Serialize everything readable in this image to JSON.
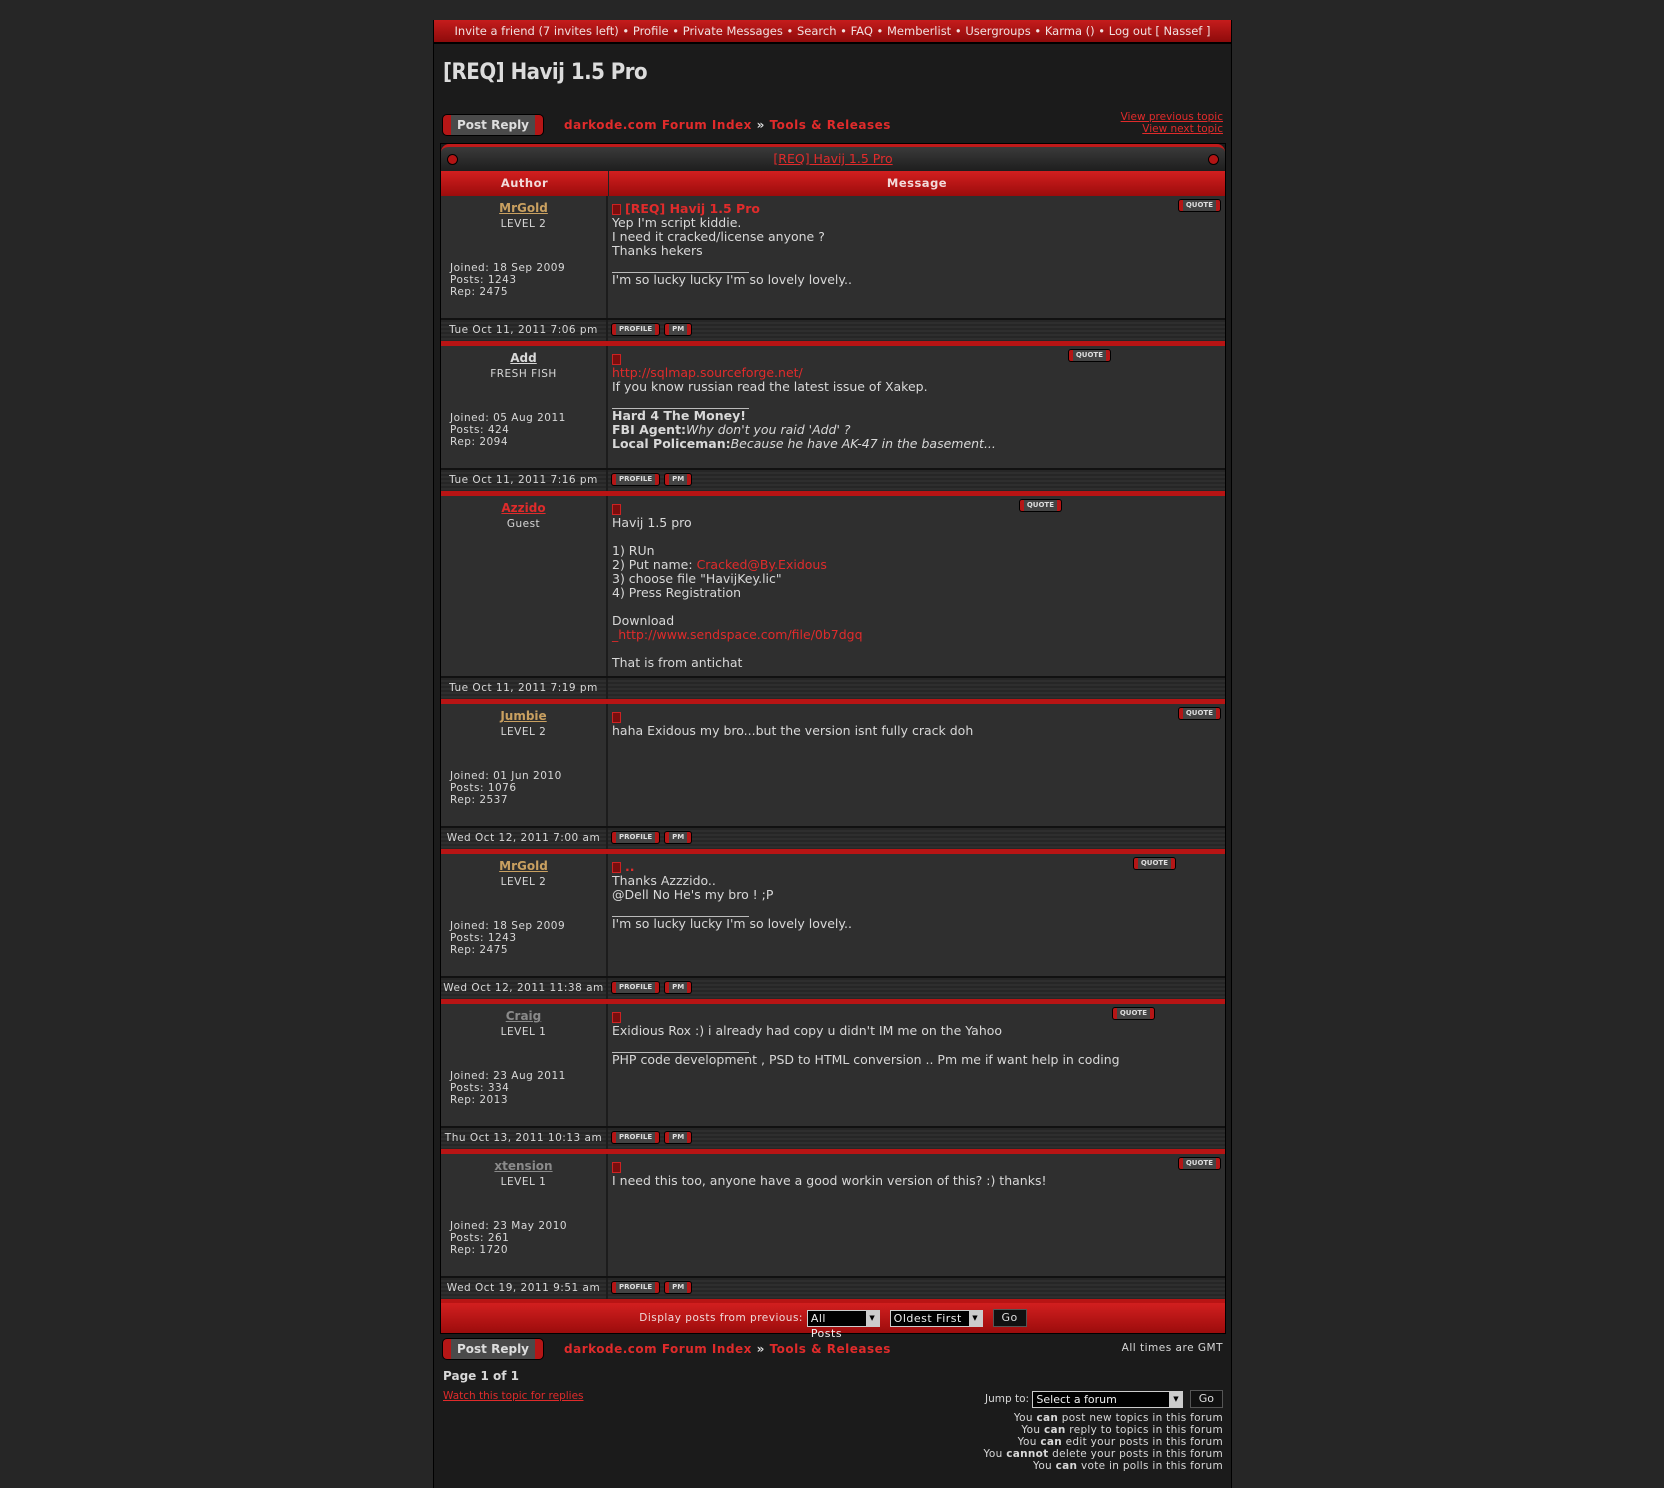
{
  "topnav": {
    "items": [
      "Invite a friend (7 invites left)",
      "Profile",
      "Private Messages",
      "Search",
      "FAQ",
      "Memberlist",
      "Usergroups",
      "Karma ()",
      "Log out [ Nassef ]"
    ],
    "separator": " • "
  },
  "page_title": "[REQ] Havij 1.5 Pro",
  "post_reply_label": "Post Reply",
  "breadcrumb": {
    "index": "darkode.com Forum Index",
    "sep": "»",
    "forum": "Tools & Releases"
  },
  "view_previous": "View previous topic",
  "view_next": "View next topic",
  "topic_header": "[REQ] Havij 1.5 Pro",
  "columns": {
    "author": "Author",
    "message": "Message"
  },
  "buttons": {
    "quote": "QUOTE",
    "profile": "PROFILE",
    "pm": "PM"
  },
  "colors": {
    "accent": "#e02b2b",
    "gold": "#c9a060",
    "grey_user": "#8a8a8a",
    "bar": "#b81414"
  },
  "posts": [
    {
      "author": "MrGold",
      "author_color": "#c9a060",
      "rank": "LEVEL 2",
      "joined": "Joined: 18 Sep 2009",
      "posts": "Posts: 1243",
      "rep": "Rep: 2475",
      "date": "Tue Oct 11, 2011 7:06 pm",
      "subject": "[REQ] Havij 1.5 Pro",
      "has_buttons": true,
      "body": [
        [
          {
            "t": "Yep I'm script kiddie."
          }
        ],
        [
          {
            "t": "I need it cracked/license anyone ?"
          }
        ],
        [
          {
            "t": "Thanks hekers"
          }
        ]
      ],
      "signature": [
        [
          {
            "t": "I'm so lucky lucky I'm so lovely lovely.."
          }
        ]
      ]
    },
    {
      "author": "Add",
      "author_color": "#d8d8d8",
      "rank": "FRESH FISH",
      "joined": "Joined: 05 Aug 2011",
      "posts": "Posts: 424",
      "rep": "Rep: 2094",
      "date": "Tue Oct 11, 2011 7:16 pm",
      "subject": "",
      "has_buttons": true,
      "body": [
        [
          {
            "t": "http://sqlmap.sourceforge.net/",
            "s": "link"
          }
        ],
        [
          {
            "t": "If you know russian read the latest issue of Xakep."
          }
        ]
      ],
      "signature": [
        [
          {
            "t": "Hard 4 The Money!",
            "s": "b"
          }
        ],
        [
          {
            "t": "FBI Agent:",
            "s": "b"
          },
          {
            "t": "Why don't you raid 'Add' ?",
            "s": "i"
          }
        ],
        [
          {
            "t": "Local Policeman:",
            "s": "b"
          },
          {
            "t": "Because he have AK-47 in the basement...",
            "s": "i"
          }
        ]
      ]
    },
    {
      "author": "Azzido",
      "author_color": "#e02b2b",
      "rank": "Guest",
      "joined": "",
      "posts": "",
      "rep": "",
      "date": "Tue Oct 11, 2011 7:19 pm",
      "subject": "",
      "has_buttons": false,
      "body": [
        [
          {
            "t": "Havij 1.5 pro"
          }
        ],
        [
          {
            "t": ""
          }
        ],
        [
          {
            "t": "1) RUn"
          }
        ],
        [
          {
            "t": "2) Put name: "
          },
          {
            "t": "Cracked@By.Exidous",
            "s": "link"
          }
        ],
        [
          {
            "t": "3) choose file \"HavijKey.lic\""
          }
        ],
        [
          {
            "t": "4) Press Registration"
          }
        ],
        [
          {
            "t": ""
          }
        ],
        [
          {
            "t": "Download"
          }
        ],
        [
          {
            "t": "_http://www.sendspace.com/file/0b7dgq",
            "s": "link"
          }
        ],
        [
          {
            "t": ""
          }
        ],
        [
          {
            "t": "That is from antichat"
          }
        ]
      ],
      "signature": []
    },
    {
      "author": "Jumbie",
      "author_color": "#c9a060",
      "rank": "LEVEL 2",
      "joined": "Joined: 01 Jun 2010",
      "posts": "Posts: 1076",
      "rep": "Rep: 2537",
      "date": "Wed Oct 12, 2011 7:00 am",
      "subject": "",
      "has_buttons": true,
      "body": [
        [
          {
            "t": "haha Exidous my bro...but the version isnt fully crack doh"
          }
        ]
      ],
      "signature": []
    },
    {
      "author": "MrGold",
      "author_color": "#c9a060",
      "rank": "LEVEL 2",
      "joined": "Joined: 18 Sep 2009",
      "posts": "Posts: 1243",
      "rep": "Rep: 2475",
      "date": "Wed Oct 12, 2011 11:38 am",
      "subject": "..",
      "has_buttons": true,
      "body": [
        [
          {
            "t": "Thanks Azzzido.."
          }
        ],
        [
          {
            "t": "@Dell No He's my bro ! ;P"
          }
        ]
      ],
      "signature": [
        [
          {
            "t": "I'm so lucky lucky I'm so lovely lovely.."
          }
        ]
      ]
    },
    {
      "author": "Craig",
      "author_color": "#8a8a8a",
      "rank": "LEVEL 1",
      "joined": "Joined: 23 Aug 2011",
      "posts": "Posts: 334",
      "rep": "Rep: 2013",
      "date": "Thu Oct 13, 2011 10:13 am",
      "subject": "",
      "has_buttons": true,
      "body": [
        [
          {
            "t": "Exidious Rox :) i already had copy u didn't IM me on the Yahoo"
          }
        ]
      ],
      "signature": [
        [
          {
            "t": "PHP code development , PSD to HTML conversion .. Pm me if want help in coding"
          }
        ]
      ]
    },
    {
      "author": "xtension",
      "author_color": "#8a8a8a",
      "rank": "LEVEL 1",
      "joined": "Joined: 23 May 2010",
      "posts": "Posts: 261",
      "rep": "Rep: 1720",
      "date": "Wed Oct 19, 2011 9:51 am",
      "subject": "",
      "has_buttons": true,
      "body": [
        [
          {
            "t": "I need this too, anyone have a good workin version of this? :) thanks!"
          }
        ]
      ],
      "signature": []
    }
  ],
  "display_posts": {
    "label": "Display posts from previous:",
    "range": "All Posts",
    "order": "Oldest First",
    "go": "Go"
  },
  "timezone": "All times are GMT",
  "pagination": "Page 1 of 1",
  "watch_topic": "Watch this topic for replies",
  "jump": {
    "label": "Jump to:",
    "value": "Select a forum",
    "go": "Go"
  },
  "permissions": [
    [
      "You ",
      "can",
      " post new topics in this forum"
    ],
    [
      "You ",
      "can",
      " reply to topics in this forum"
    ],
    [
      "You ",
      "can",
      " edit your posts in this forum"
    ],
    [
      "You ",
      "cannot",
      " delete your posts in this forum"
    ],
    [
      "You ",
      "can",
      " vote in polls in this forum"
    ]
  ]
}
